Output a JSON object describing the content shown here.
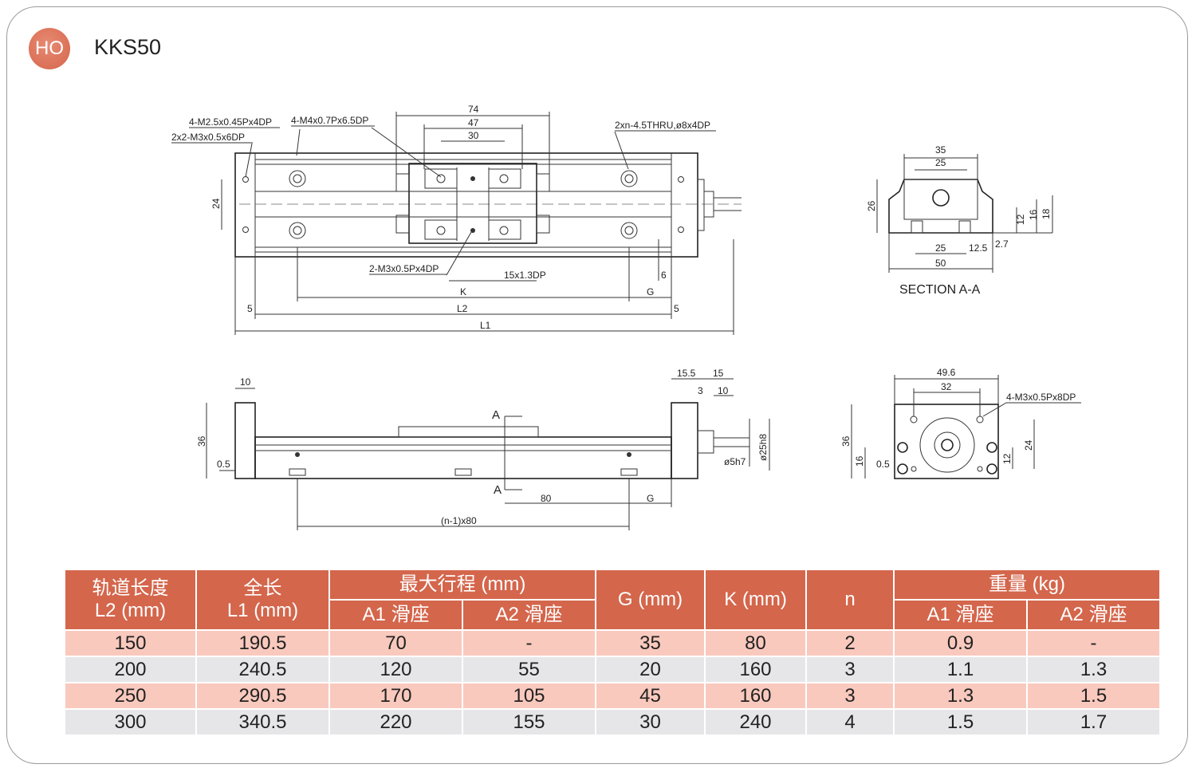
{
  "header": {
    "logo": "HO",
    "model": "KKS50"
  },
  "drawing": {
    "top_view": {
      "d74": "74",
      "d47": "47",
      "d30": "30",
      "note1": "4-M2.5x0.45Px4DP",
      "note2": "4-M4x0.7Px6.5DP",
      "note3": "2x2-M3x0.5x6DP",
      "note4": "2xn-4.5THRU,ø8x4DP",
      "note5": "2-M3x0.5Px4DP",
      "note6": "15x1.3DP",
      "d24": "24",
      "d6": "6",
      "K": "K",
      "G": "G",
      "L2": "L2",
      "L1": "L1",
      "d5a": "5",
      "d5b": "5"
    },
    "section": {
      "d35": "35",
      "d25top": "25",
      "d26": "26",
      "d12": "12",
      "d16": "16",
      "d18": "18",
      "d25": "25",
      "d12_5": "12.5",
      "d2_7": "2.7",
      "d50": "50",
      "caption": "SECTION  A-A"
    },
    "side_view": {
      "d10": "10",
      "d36": "36",
      "d0_5": "0.5",
      "A_top": "A",
      "A_bot": "A",
      "d80": "80",
      "G": "G",
      "pitch": "(n-1)x80",
      "d15_5": "15.5",
      "d15": "15",
      "d3": "3",
      "d10r": "10",
      "d5h7": "ø5h7",
      "d25h8": "ø25h8"
    },
    "end_view": {
      "d49_6": "49.6",
      "d32": "32",
      "note": "4-M3x0.5Px8DP",
      "d36": "36",
      "d16": "16",
      "d0_5": "0.5",
      "d12": "12",
      "d24": "24"
    }
  },
  "table": {
    "colors": {
      "header": "#d4664c",
      "row_pink": "#f9c9bd",
      "row_gray": "#e6e6e8"
    },
    "headers": {
      "l2_line1": "轨道长度",
      "l2_line2": "L2 (mm)",
      "l1_line1": "全长",
      "l1_line2": "L1 (mm)",
      "stroke": "最大行程 (mm)",
      "a1": "A1 滑座",
      "a2": "A2 滑座",
      "g": "G (mm)",
      "k": "K (mm)",
      "n": "n",
      "weight": "重量 (kg)",
      "wa1": "A1 滑座",
      "wa2": "A2 滑座"
    },
    "rows": [
      [
        "150",
        "190.5",
        "70",
        "-",
        "35",
        "80",
        "2",
        "0.9",
        "-"
      ],
      [
        "200",
        "240.5",
        "120",
        "55",
        "20",
        "160",
        "3",
        "1.1",
        "1.3"
      ],
      [
        "250",
        "290.5",
        "170",
        "105",
        "45",
        "160",
        "3",
        "1.3",
        "1.5"
      ],
      [
        "300",
        "340.5",
        "220",
        "155",
        "30",
        "240",
        "4",
        "1.5",
        "1.7"
      ]
    ]
  }
}
